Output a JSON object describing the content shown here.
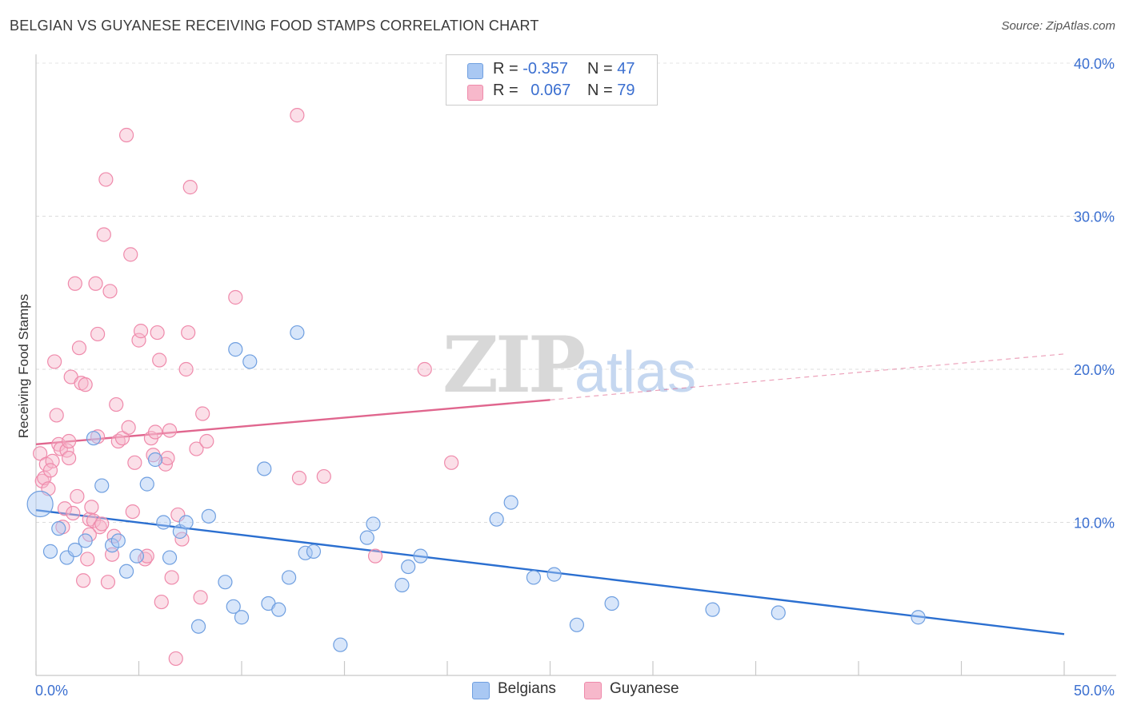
{
  "title": "BELGIAN VS GUYANESE RECEIVING FOOD STAMPS CORRELATION CHART",
  "source": "Source: ZipAtlas.com",
  "watermark": {
    "zip": "ZIP",
    "atlas": "atlas"
  },
  "legend": {
    "r_label": "R =",
    "n_label": "N =",
    "rows": [
      {
        "r": "-0.357",
        "n": "47",
        "color": "#a9c8f3"
      },
      {
        "r": "0.067",
        "n": "79",
        "color": "#f7b8cb"
      }
    ]
  },
  "bottom_legend": [
    "Belgians",
    "Guyanese"
  ],
  "chart_data": {
    "type": "scatter",
    "title": "BELGIAN VS GUYANESE RECEIVING FOOD STAMPS CORRELATION CHART",
    "xlabel": "",
    "ylabel": "Receiving Food Stamps",
    "xlim": [
      0,
      50
    ],
    "ylim": [
      0,
      40
    ],
    "x_tick_labels": [
      "0.0%",
      "50.0%"
    ],
    "y_tick_labels": [
      "10.0%",
      "20.0%",
      "30.0%",
      "40.0%"
    ],
    "y_ticks": [
      10,
      20,
      30,
      40
    ],
    "grid": true,
    "colors": {
      "Belgians": "#6f9fe0",
      "Guyanese": "#ef8aab",
      "Belgians_line": "#2b6fd0",
      "Guyanese_line": "#e0668e",
      "tick_label": "#3b6fd0"
    },
    "series": [
      {
        "name": "Belgians",
        "r": -0.357,
        "n": 47,
        "trend": {
          "x": [
            0,
            50
          ],
          "y": [
            10.8,
            2.7
          ]
        },
        "points": [
          [
            0.2,
            11.2
          ],
          [
            0.7,
            8.1
          ],
          [
            1.1,
            9.6
          ],
          [
            1.5,
            7.7
          ],
          [
            1.9,
            8.2
          ],
          [
            2.4,
            8.8
          ],
          [
            2.8,
            15.5
          ],
          [
            3.2,
            12.4
          ],
          [
            3.7,
            8.5
          ],
          [
            4.0,
            8.8
          ],
          [
            4.4,
            6.8
          ],
          [
            4.9,
            7.8
          ],
          [
            5.4,
            12.5
          ],
          [
            5.8,
            14.1
          ],
          [
            6.2,
            10.0
          ],
          [
            6.5,
            7.7
          ],
          [
            7.0,
            9.4
          ],
          [
            7.3,
            10.0
          ],
          [
            7.9,
            3.2
          ],
          [
            8.4,
            10.4
          ],
          [
            9.2,
            6.1
          ],
          [
            9.6,
            4.5
          ],
          [
            9.7,
            21.3
          ],
          [
            10.0,
            3.8
          ],
          [
            10.4,
            20.5
          ],
          [
            11.1,
            13.5
          ],
          [
            11.3,
            4.7
          ],
          [
            11.8,
            4.3
          ],
          [
            12.3,
            6.4
          ],
          [
            12.7,
            22.4
          ],
          [
            13.1,
            8.0
          ],
          [
            13.5,
            8.1
          ],
          [
            14.8,
            2.0
          ],
          [
            16.1,
            9.0
          ],
          [
            16.4,
            9.9
          ],
          [
            17.8,
            5.9
          ],
          [
            18.1,
            7.1
          ],
          [
            18.7,
            7.8
          ],
          [
            22.4,
            10.2
          ],
          [
            23.1,
            11.3
          ],
          [
            24.2,
            6.4
          ],
          [
            25.2,
            6.6
          ],
          [
            26.3,
            3.3
          ],
          [
            28.0,
            4.7
          ],
          [
            32.9,
            4.3
          ],
          [
            36.1,
            4.1
          ],
          [
            42.9,
            3.8
          ]
        ]
      },
      {
        "name": "Guyanese",
        "r": 0.067,
        "n": 79,
        "trend": {
          "x": [
            0,
            25,
            50
          ],
          "y": [
            15.1,
            18.0,
            21.0
          ],
          "solid_until_x": 25
        },
        "points": [
          [
            0.2,
            14.5
          ],
          [
            0.3,
            12.7
          ],
          [
            0.4,
            12.9
          ],
          [
            0.5,
            13.8
          ],
          [
            0.6,
            12.2
          ],
          [
            0.8,
            14.0
          ],
          [
            0.9,
            20.5
          ],
          [
            1.0,
            17.0
          ],
          [
            1.1,
            15.1
          ],
          [
            1.2,
            14.8
          ],
          [
            1.3,
            9.7
          ],
          [
            1.4,
            10.9
          ],
          [
            1.5,
            14.7
          ],
          [
            1.6,
            14.2
          ],
          [
            1.7,
            19.5
          ],
          [
            1.8,
            10.6
          ],
          [
            1.9,
            25.6
          ],
          [
            2.0,
            11.7
          ],
          [
            2.1,
            21.4
          ],
          [
            2.2,
            19.1
          ],
          [
            2.3,
            6.2
          ],
          [
            2.4,
            19.0
          ],
          [
            2.5,
            7.6
          ],
          [
            2.6,
            10.2
          ],
          [
            2.7,
            11.0
          ],
          [
            2.8,
            10.1
          ],
          [
            2.9,
            25.6
          ],
          [
            3.0,
            22.3
          ],
          [
            3.1,
            9.7
          ],
          [
            3.2,
            9.9
          ],
          [
            3.3,
            28.8
          ],
          [
            3.4,
            32.4
          ],
          [
            3.5,
            6.1
          ],
          [
            3.6,
            25.1
          ],
          [
            3.7,
            7.9
          ],
          [
            3.8,
            9.1
          ],
          [
            3.9,
            17.7
          ],
          [
            4.0,
            15.3
          ],
          [
            4.2,
            15.5
          ],
          [
            4.4,
            35.3
          ],
          [
            4.5,
            16.2
          ],
          [
            4.6,
            27.5
          ],
          [
            4.7,
            10.7
          ],
          [
            4.8,
            13.9
          ],
          [
            5.0,
            21.9
          ],
          [
            5.1,
            22.5
          ],
          [
            5.3,
            7.6
          ],
          [
            5.4,
            7.8
          ],
          [
            5.6,
            15.5
          ],
          [
            5.7,
            14.4
          ],
          [
            5.9,
            22.4
          ],
          [
            6.0,
            20.6
          ],
          [
            6.1,
            4.8
          ],
          [
            6.3,
            13.8
          ],
          [
            6.4,
            14.2
          ],
          [
            6.5,
            16.0
          ],
          [
            6.6,
            6.4
          ],
          [
            6.8,
            1.1
          ],
          [
            6.9,
            10.5
          ],
          [
            7.1,
            8.9
          ],
          [
            7.3,
            20.0
          ],
          [
            7.4,
            22.4
          ],
          [
            7.5,
            31.9
          ],
          [
            7.8,
            14.8
          ],
          [
            8.0,
            5.1
          ],
          [
            8.1,
            17.1
          ],
          [
            8.3,
            15.3
          ],
          [
            9.7,
            24.7
          ],
          [
            12.7,
            36.6
          ],
          [
            12.8,
            12.9
          ],
          [
            14.0,
            13.0
          ],
          [
            16.5,
            7.8
          ],
          [
            18.9,
            20.0
          ],
          [
            20.2,
            13.9
          ],
          [
            1.6,
            15.3
          ],
          [
            0.7,
            13.4
          ],
          [
            2.6,
            9.2
          ],
          [
            3.0,
            15.6
          ],
          [
            5.8,
            15.9
          ]
        ]
      }
    ]
  }
}
